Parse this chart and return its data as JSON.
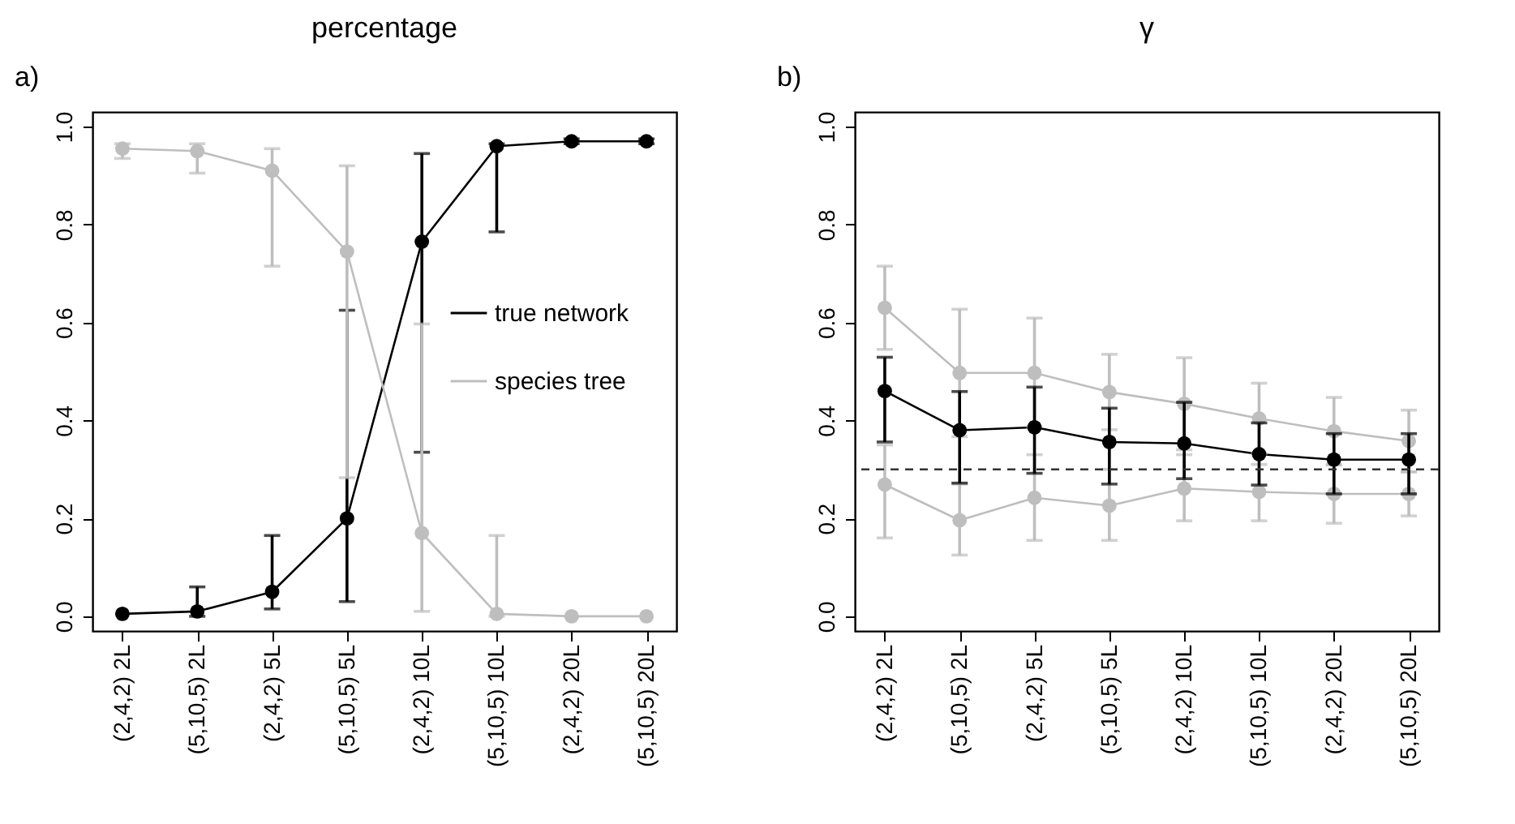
{
  "chart_data": [
    {
      "type": "line",
      "title": "percentage",
      "annotations": [
        "a)"
      ],
      "categories": [
        "(2,4,2) 2L",
        "(5,10,5) 2L",
        "(2,4,2) 5L",
        "(5,10,5) 5L",
        "(2,4,2) 10L",
        "(5,10,5) 10L",
        "(2,4,2) 20L",
        "(5,10,5) 20L"
      ],
      "ylim": [
        -0.03,
        1.03
      ],
      "yticks": [
        {
          "value": 0,
          "label": "0.0"
        },
        {
          "value": 0.2,
          "label": "0.2"
        },
        {
          "value": 0.4,
          "label": "0.4"
        },
        {
          "value": 0.6,
          "label": "0.6"
        },
        {
          "value": 0.8,
          "label": "0.8"
        },
        {
          "value": 1,
          "label": "1.0"
        }
      ],
      "grid": false,
      "legend": "right",
      "marker": "circle",
      "series": [
        {
          "name": "true network",
          "color": "#000000",
          "values": [
            0.005,
            0.01,
            0.05,
            0.2,
            0.765,
            0.96,
            0.97,
            0.97
          ],
          "errors": [
            null,
            [
              0.0,
              0.06
            ],
            [
              0.015,
              0.165
            ],
            [
              0.03,
              0.625
            ],
            [
              0.335,
              0.945
            ],
            [
              0.785,
              0.965
            ],
            [
              0.965,
              0.975
            ],
            [
              0.965,
              0.975
            ]
          ]
        },
        {
          "name": "species tree",
          "color": "#bebebe",
          "values": [
            0.955,
            0.95,
            0.91,
            0.745,
            0.17,
            0.005,
            0.0,
            0.0
          ],
          "errors": [
            [
              0.935,
              0.965
            ],
            [
              0.905,
              0.965
            ],
            [
              0.715,
              0.955
            ],
            [
              0.283,
              0.92
            ],
            [
              0.01,
              0.597
            ],
            [
              0.0,
              0.165
            ],
            null,
            null
          ]
        }
      ]
    },
    {
      "type": "line",
      "title": "γ",
      "annotations": [
        "b)"
      ],
      "categories": [
        "(2,4,2) 2L",
        "(5,10,5) 2L",
        "(2,4,2) 5L",
        "(5,10,5) 5L",
        "(2,4,2) 10L",
        "(5,10,5) 10L",
        "(2,4,2) 20L",
        "(5,10,5) 20L"
      ],
      "ylim": [
        -0.03,
        1.03
      ],
      "yticks": [
        {
          "value": 0,
          "label": "0.0"
        },
        {
          "value": 0.2,
          "label": "0.2"
        },
        {
          "value": 0.4,
          "label": "0.4"
        },
        {
          "value": 0.6,
          "label": "0.6"
        },
        {
          "value": 0.8,
          "label": "0.8"
        },
        {
          "value": 1,
          "label": "1.0"
        }
      ],
      "grid": false,
      "marker": "circle",
      "ref_lines": [
        {
          "axis": "y",
          "value": 0.3,
          "color": "#333333",
          "line_style": "dashed"
        }
      ],
      "series": [
        {
          "color": "#bebebe",
          "values": [
            0.63,
            0.497,
            0.497,
            0.458,
            0.434,
            0.404,
            0.378,
            0.358
          ],
          "errors": [
            [
              0.545,
              0.715
            ],
            [
              0.367,
              0.627
            ],
            [
              0.387,
              0.609
            ],
            [
              0.381,
              0.535
            ],
            [
              0.34,
              0.528
            ],
            [
              0.332,
              0.476
            ],
            [
              0.309,
              0.447
            ],
            [
              0.295,
              0.421
            ]
          ]
        },
        {
          "color": "#bebebe",
          "values": [
            0.269,
            0.196,
            0.242,
            0.226,
            0.261,
            0.254,
            0.25,
            0.25
          ],
          "errors": [
            [
              0.16,
              0.35
            ],
            [
              0.125,
              0.27
            ],
            [
              0.155,
              0.33
            ],
            [
              0.155,
              0.3
            ],
            [
              0.195,
              0.33
            ],
            [
              0.195,
              0.31
            ],
            [
              0.19,
              0.31
            ],
            [
              0.205,
              0.295
            ]
          ]
        },
        {
          "color": "#000000",
          "values": [
            0.46,
            0.38,
            0.386,
            0.356,
            0.353,
            0.331,
            0.32,
            0.32
          ],
          "errors": [
            [
              0.356,
              0.529
            ],
            [
              0.272,
              0.459
            ],
            [
              0.292,
              0.468
            ],
            [
              0.27,
              0.425
            ],
            [
              0.281,
              0.437
            ],
            [
              0.268,
              0.395
            ],
            [
              0.25,
              0.373
            ],
            [
              0.25,
              0.373
            ]
          ]
        }
      ]
    }
  ]
}
